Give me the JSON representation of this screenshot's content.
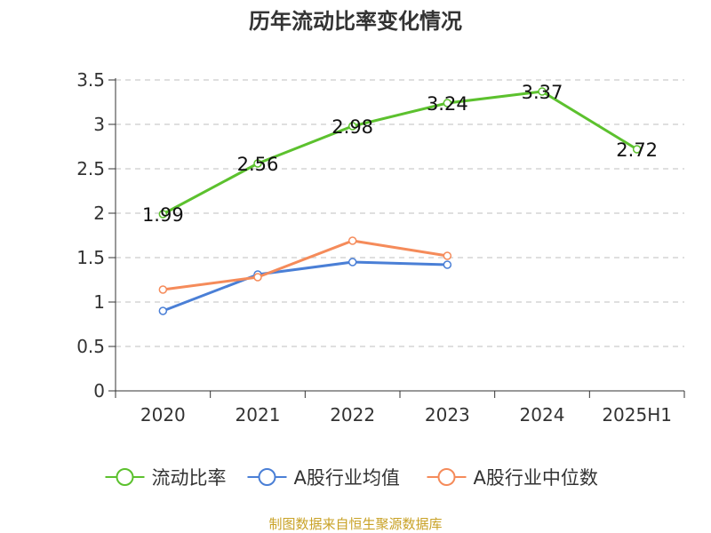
{
  "chart_data": {
    "type": "line",
    "title": "历年流动比率变化情况",
    "categories": [
      "2020",
      "2021",
      "2022",
      "2023",
      "2024",
      "2025H1"
    ],
    "ylim": [
      0,
      3.5
    ],
    "yticks": [
      "0",
      "0.5",
      "1",
      "1.5",
      "2",
      "2.5",
      "3",
      "3.5"
    ],
    "grid": true,
    "legend_position": "bottom",
    "series": [
      {
        "name": "流动比率",
        "color": "#5cc12e",
        "values": [
          1.99,
          2.56,
          2.98,
          3.24,
          3.37,
          2.72
        ],
        "labels": [
          "1.99",
          "2.56",
          "2.98",
          "3.24",
          "3.37",
          "2.72"
        ]
      },
      {
        "name": "A股行业均值",
        "color": "#4a7fd6",
        "values": [
          0.9,
          1.31,
          1.45,
          1.42,
          null,
          null
        ]
      },
      {
        "name": "A股行业中位数",
        "color": "#f58b5a",
        "values": [
          1.14,
          1.28,
          1.69,
          1.52,
          null,
          null
        ]
      }
    ],
    "source": "制图数据来自恒生聚源数据库"
  }
}
